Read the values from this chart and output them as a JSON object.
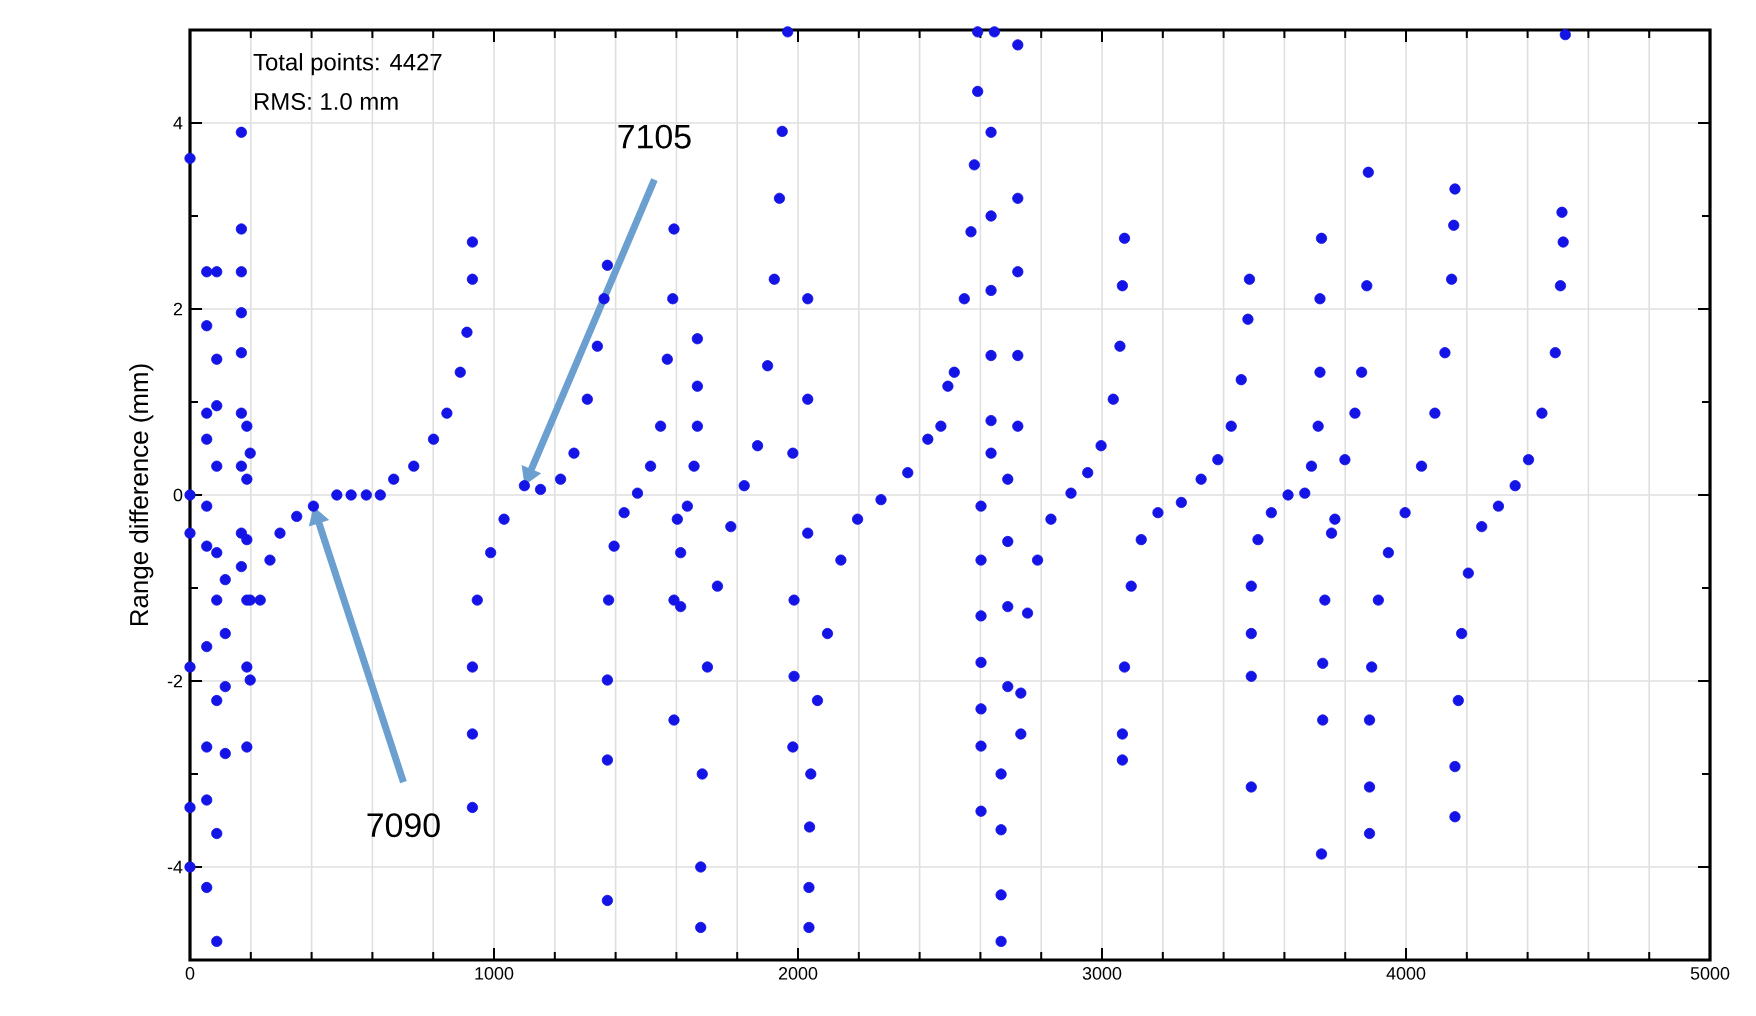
{
  "chart_data": {
    "type": "scatter",
    "ylabel": "Range difference (mm)",
    "xlim": [
      0,
      5000
    ],
    "xticks": [
      0,
      1000,
      2000,
      3000,
      4000,
      5000
    ],
    "ylim": [
      -5,
      5
    ],
    "yticks": [
      -4,
      -2,
      0,
      2,
      4
    ],
    "grid": true,
    "marker": "circle",
    "annotations": [
      "Total points: 4427",
      "RMS: 1.0 mm",
      {
        "text": "7090",
        "x": 406,
        "y": -0.12
      },
      {
        "text": "7105",
        "x": 1100,
        "y": 0.1
      }
    ],
    "series": [
      {
        "color": "#1414e6",
        "x": [
          0,
          0,
          0,
          0,
          0,
          0,
          55,
          55,
          55,
          55,
          55,
          55,
          55,
          55,
          55,
          55,
          88,
          88,
          88,
          88,
          88,
          88,
          88,
          88,
          88,
          116,
          116,
          116,
          116,
          169,
          169,
          169,
          169,
          169,
          169,
          169,
          169,
          169,
          187,
          187,
          187,
          187,
          187,
          187,
          198,
          198,
          198,
          231,
          263,
          296,
          351,
          406,
          483,
          530,
          580,
          626,
          670,
          736,
          801,
          845,
          889,
          911,
          929,
          929,
          929,
          929,
          929,
          945,
          989,
          1033,
          1100,
          1153,
          1219,
          1263,
          1307,
          1340,
          1362,
          1373,
          1373,
          1377,
          1395,
          1428,
          1472,
          1515,
          1548,
          1570,
          1588,
          1592,
          1373,
          1373,
          1592,
          1592,
          1603,
          1669,
          1669,
          1669,
          1658,
          1636,
          1614,
          1614,
          1680,
          1680,
          1685,
          1702,
          1735,
          1779,
          1823,
          1867,
          1900,
          1922,
          1939,
          1948,
          1966,
          1983,
          1987,
          1987,
          1983,
          2032,
          2032,
          2032,
          2036,
          2036,
          2038,
          2042,
          2064,
          2097,
          2141,
          2196,
          2273,
          2361,
          2427,
          2470,
          2493,
          2514,
          2547,
          2569,
          2580,
          2591,
          2591,
          2602,
          2602,
          2602,
          2602,
          2602,
          2602,
          2602,
          2635,
          2635,
          2635,
          2635,
          2635,
          2635,
          2646,
          2668,
          2668,
          2668,
          2668,
          2690,
          2690,
          2690,
          2690,
          2723,
          2723,
          2723,
          2723,
          2723,
          2733,
          2733,
          2755,
          2788,
          2832,
          2898,
          2953,
          2997,
          3037,
          3059,
          3067,
          3074,
          3067,
          3067,
          3074,
          3096,
          3129,
          3184,
          3261,
          3326,
          3381,
          3425,
          3458,
          3480,
          3485,
          3491,
          3491,
          3491,
          3491,
          3513,
          3557,
          3612,
          3667,
          3689,
          3711,
          3717,
          3717,
          3722,
          3722,
          3726,
          3726,
          3733,
          3755,
          3766,
          3799,
          3832,
          3854,
          3871,
          3876,
          3880,
          3880,
          3880,
          3887,
          3909,
          3942,
          3997,
          4051,
          4095,
          4128,
          4150,
          4157,
          4161,
          4161,
          4161,
          4172,
          4183,
          4205,
          4249,
          4304,
          4359,
          4403,
          4447,
          4491,
          4508,
          4517,
          4513,
          4524
        ],
        "values": [
          3.62,
          0,
          -0.41,
          -1.85,
          -3.36,
          -4.0,
          2.4,
          1.82,
          0.88,
          0.6,
          -0.12,
          -0.55,
          -1.63,
          -2.71,
          -3.28,
          -4.22,
          2.4,
          1.46,
          0.96,
          0.31,
          -0.62,
          -1.13,
          -2.21,
          -3.64,
          -4.8,
          -0.91,
          -1.49,
          -2.06,
          -2.78,
          3.9,
          2.86,
          2.4,
          1.96,
          1.53,
          0.88,
          0.31,
          -0.41,
          -0.77,
          0.74,
          0.17,
          -0.48,
          -1.13,
          -1.85,
          -2.71,
          0.45,
          -1.13,
          -1.99,
          -1.13,
          -0.7,
          -0.41,
          -0.23,
          -0.12,
          0,
          0,
          0,
          0,
          0.17,
          0.31,
          0.6,
          0.88,
          1.32,
          1.75,
          2.32,
          2.72,
          -2.57,
          -1.85,
          -3.36,
          -1.13,
          -0.62,
          -0.26,
          0.1,
          0.06,
          0.17,
          0.45,
          1.03,
          1.6,
          2.11,
          2.47,
          -1.99,
          -1.13,
          -0.55,
          -0.19,
          0.02,
          0.31,
          0.74,
          1.46,
          2.11,
          2.86,
          -2.85,
          -4.36,
          -2.42,
          -1.13,
          -0.26,
          1.68,
          1.17,
          0.74,
          0.31,
          -0.12,
          -0.62,
          -1.2,
          -4.65,
          -4.0,
          -3.0,
          -1.85,
          -0.98,
          -0.34,
          0.1,
          0.53,
          1.39,
          2.32,
          3.19,
          3.91,
          4.98,
          0.45,
          -1.13,
          -1.95,
          -2.71,
          2.11,
          1.03,
          -0.41,
          -4.65,
          -4.22,
          -3.57,
          -3.0,
          -2.21,
          -1.49,
          -0.7,
          -0.26,
          -0.05,
          0.24,
          0.6,
          0.74,
          1.17,
          1.32,
          2.11,
          2.83,
          3.55,
          4.34,
          4.98,
          -0.12,
          -0.7,
          -1.3,
          -1.8,
          -2.3,
          -2.7,
          -3.4,
          3.9,
          3.0,
          2.2,
          1.5,
          0.8,
          0.45,
          4.98,
          -3.0,
          -3.6,
          -4.3,
          -4.8,
          0.17,
          -0.5,
          -1.2,
          -2.06,
          4.84,
          3.19,
          2.4,
          1.5,
          0.74,
          -2.13,
          -2.57,
          -1.27,
          -0.7,
          -0.26,
          0.02,
          0.24,
          0.53,
          1.03,
          1.6,
          2.25,
          2.76,
          -2.85,
          -2.57,
          -1.85,
          -0.98,
          -0.48,
          -0.19,
          -0.08,
          0.17,
          0.38,
          0.74,
          1.24,
          1.89,
          2.32,
          -3.14,
          -1.95,
          -1.49,
          -0.98,
          -0.48,
          -0.19,
          0,
          0.02,
          0.31,
          0.74,
          1.32,
          2.11,
          2.76,
          -3.86,
          -2.42,
          -1.81,
          -1.13,
          -0.41,
          -0.26,
          0.38,
          0.88,
          1.32,
          2.25,
          3.47,
          -3.64,
          -3.14,
          -2.42,
          -1.85,
          -1.13,
          -0.62,
          -0.19,
          0.31,
          0.88,
          1.53,
          2.32,
          2.9,
          3.29,
          -3.46,
          -2.92,
          -2.21,
          -1.49,
          -0.84,
          -0.34,
          -0.12,
          0.1,
          0.38,
          0.88,
          1.53,
          2.25,
          2.72,
          3.04,
          4.95
        ]
      }
    ]
  }
}
